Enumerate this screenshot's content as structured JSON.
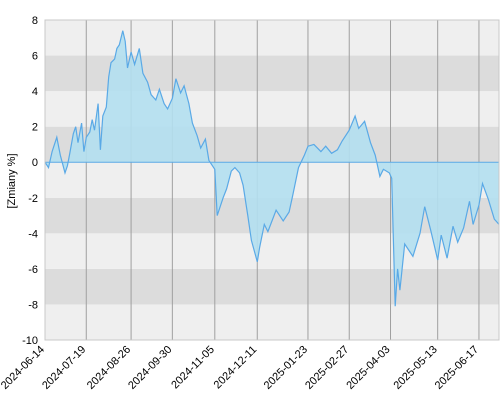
{
  "chart_data": {
    "type": "area",
    "title": "",
    "xlabel": "",
    "ylabel": "[Zmiany %]",
    "ylim": [
      -10,
      8
    ],
    "yticks": [
      -10,
      -8,
      -6,
      -4,
      -2,
      0,
      2,
      4,
      6,
      8
    ],
    "xlim": [
      "2024-06-14",
      "2025-07-04"
    ],
    "xticks": [
      "2024-06-14",
      "2024-07-19",
      "2024-08-26",
      "2024-09-30",
      "2024-11-05",
      "2024-12-11",
      "2025-01-23",
      "2025-02-27",
      "2025-04-03",
      "2025-05-13",
      "2025-06-17"
    ],
    "grid": true,
    "legend": "none",
    "colors": {
      "line": "#5aa9e6",
      "fill": "#b3dff0",
      "band_light": "#efefef",
      "band_dark": "#dcdcdc",
      "gridline": "#a0a0a0",
      "zero_line": "#5aa9e6",
      "axis_text": "#000000"
    },
    "series": [
      {
        "x": [
          "2024-06-14",
          "2024-06-17",
          "2024-06-20",
          "2024-06-24",
          "2024-06-27",
          "2024-07-01",
          "2024-07-03",
          "2024-07-05",
          "2024-07-08",
          "2024-07-10",
          "2024-07-12",
          "2024-07-15",
          "2024-07-17",
          "2024-07-19",
          "2024-07-22",
          "2024-07-24",
          "2024-07-26",
          "2024-07-29",
          "2024-07-31",
          "2024-08-02",
          "2024-08-05",
          "2024-08-07",
          "2024-08-09",
          "2024-08-12",
          "2024-08-14",
          "2024-08-16",
          "2024-08-19",
          "2024-08-21",
          "2024-08-23",
          "2024-08-26",
          "2024-08-29",
          "2024-09-02",
          "2024-09-05",
          "2024-09-09",
          "2024-09-12",
          "2024-09-16",
          "2024-09-19",
          "2024-09-23",
          "2024-09-26",
          "2024-09-30",
          "2024-10-03",
          "2024-10-07",
          "2024-10-10",
          "2024-10-14",
          "2024-10-17",
          "2024-10-21",
          "2024-10-24",
          "2024-10-28",
          "2024-10-31",
          "2024-11-05",
          "2024-11-07",
          "2024-11-12",
          "2024-11-15",
          "2024-11-19",
          "2024-11-22",
          "2024-11-26",
          "2024-11-29",
          "2024-12-03",
          "2024-12-06",
          "2024-12-11",
          "2024-12-13",
          "2024-12-17",
          "2024-12-20",
          "2024-12-27",
          "2025-01-02",
          "2025-01-07",
          "2025-01-10",
          "2025-01-15",
          "2025-01-20",
          "2025-01-23",
          "2025-01-28",
          "2025-02-03",
          "2025-02-07",
          "2025-02-12",
          "2025-02-17",
          "2025-02-21",
          "2025-02-27",
          "2025-03-04",
          "2025-03-07",
          "2025-03-12",
          "2025-03-17",
          "2025-03-21",
          "2025-03-25",
          "2025-03-28",
          "2025-04-02",
          "2025-04-04",
          "2025-04-07",
          "2025-04-09",
          "2025-04-11",
          "2025-04-15",
          "2025-04-22",
          "2025-04-28",
          "2025-05-02",
          "2025-05-07",
          "2025-05-13",
          "2025-05-16",
          "2025-05-21",
          "2025-05-26",
          "2025-05-30",
          "2025-06-04",
          "2025-06-09",
          "2025-06-12",
          "2025-06-17",
          "2025-06-20",
          "2025-06-25",
          "2025-06-30",
          "2025-07-04"
        ],
        "y": [
          0,
          -0.3,
          0.6,
          1.4,
          0.4,
          -0.6,
          -0.2,
          0.5,
          1.6,
          2.0,
          1.1,
          2.2,
          0.6,
          1.4,
          1.7,
          2.4,
          1.8,
          3.3,
          0.7,
          2.6,
          3.1,
          4.8,
          5.6,
          5.8,
          6.4,
          6.6,
          7.4,
          6.8,
          5.3,
          6.2,
          5.5,
          6.4,
          5.0,
          4.5,
          3.8,
          3.5,
          4.1,
          3.3,
          3.0,
          3.6,
          4.7,
          3.9,
          4.3,
          3.3,
          2.2,
          1.5,
          0.8,
          1.3,
          0.1,
          -0.4,
          -3.0,
          -2.0,
          -1.5,
          -0.5,
          -0.3,
          -0.6,
          -1.3,
          -3.0,
          -4.4,
          -5.6,
          -4.8,
          -3.5,
          -3.9,
          -2.7,
          -3.3,
          -2.8,
          -1.9,
          -0.3,
          0.4,
          0.9,
          1.0,
          0.6,
          0.9,
          0.5,
          0.7,
          1.2,
          1.8,
          2.6,
          1.9,
          2.3,
          1.1,
          0.4,
          -0.8,
          -0.4,
          -0.6,
          -0.9,
          -8.1,
          -6.0,
          -7.2,
          -4.6,
          -5.3,
          -4.0,
          -2.5,
          -3.8,
          -5.5,
          -4.1,
          -5.4,
          -3.6,
          -4.5,
          -3.7,
          -2.2,
          -3.5,
          -2.4,
          -1.2,
          -2.1,
          -3.2,
          -3.5
        ]
      }
    ]
  }
}
